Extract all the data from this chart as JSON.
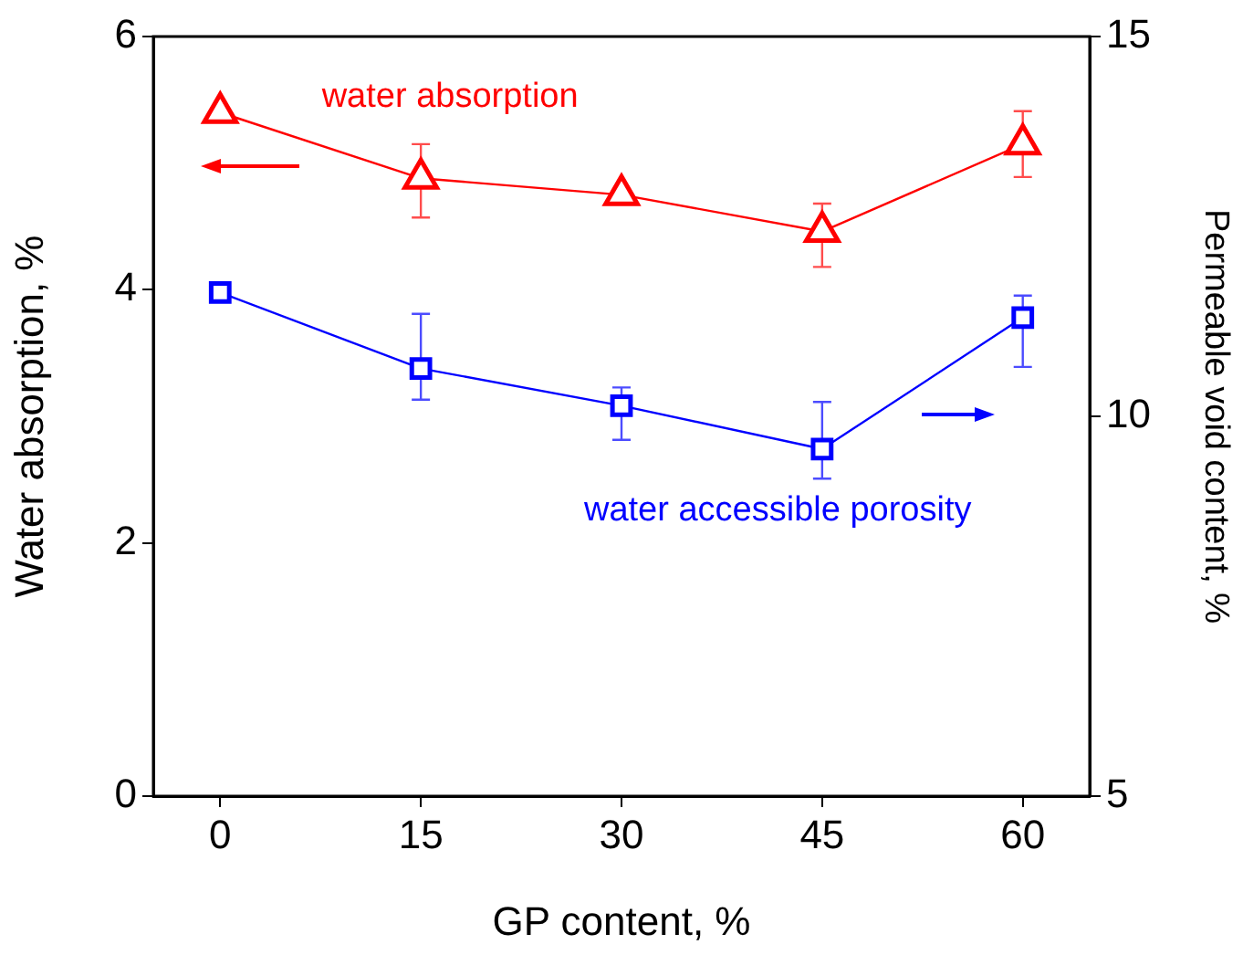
{
  "chart_data": {
    "type": "line",
    "xlabel": "GP content, %",
    "ylabel": "Water absorption, %",
    "y2label": "Permeable void content, %",
    "x": [
      0,
      15,
      30,
      45,
      60
    ],
    "xlim": [
      -5,
      65
    ],
    "xticks": [
      0,
      15,
      30,
      45,
      60
    ],
    "ylim": [
      0,
      6
    ],
    "yticks": [
      0,
      2,
      4,
      6
    ],
    "y2lim": [
      5,
      15
    ],
    "y2ticks": [
      5,
      10,
      15
    ],
    "legend": false,
    "series": [
      {
        "name": "water absorption",
        "color": "#ff0000",
        "marker": "triangle",
        "values": [
          5.4,
          4.88,
          4.75,
          4.46,
          5.15
        ],
        "errors": [
          null,
          [
            4.57,
            5.15
          ],
          null,
          [
            4.18,
            4.68
          ],
          [
            4.89,
            5.41
          ]
        ]
      },
      {
        "name": "water accessible porosity",
        "color": "#0000ff",
        "marker": "square",
        "axis": "y2",
        "values": [
          11.63,
          10.63,
          10.14,
          9.57,
          11.3
        ],
        "errors": [
          null,
          [
            10.22,
            11.35
          ],
          [
            9.69,
            10.38
          ],
          [
            9.18,
            10.19
          ],
          [
            10.65,
            11.59
          ]
        ]
      }
    ]
  }
}
